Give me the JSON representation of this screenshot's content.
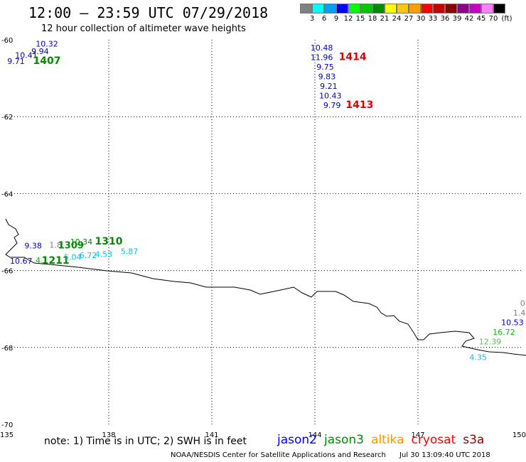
{
  "header": {
    "title": "12:00 – 23:59 UTC 07/29/2018",
    "subtitle": "12 hour collection of altimeter wave heights"
  },
  "legend": {
    "colors": [
      "#808080",
      "#00ffff",
      "#00a0ff",
      "#0000ff",
      "#00ff00",
      "#00c800",
      "#008c00",
      "#ffff00",
      "#ffc800",
      "#ffa000",
      "#ff0000",
      "#c80000",
      "#8c0000",
      "#8c008c",
      "#c800c8",
      "#ff80ff",
      "#000000"
    ],
    "labels": [
      "3",
      "6",
      "9",
      "12",
      "15",
      "18",
      "21",
      "24",
      "27",
      "30",
      "33",
      "36",
      "39",
      "42",
      "45",
      "70",
      "(ft)"
    ]
  },
  "map": {
    "y_axis": [
      "-60",
      "-62",
      "-64",
      "-66",
      "-68",
      "-70"
    ],
    "x_axis": [
      "135",
      "138",
      "141",
      "144",
      "147",
      "150"
    ],
    "lon_range": [
      135,
      150
    ],
    "lat_range": [
      -70,
      -60
    ]
  },
  "observations": [
    {
      "text": "10.32",
      "lon": 136.2,
      "lat": -60.1,
      "color": "#0000cc"
    },
    {
      "text": "9.94",
      "lon": 136.0,
      "lat": -60.3,
      "color": "#0000cc"
    },
    {
      "text": "10.41",
      "lon": 135.6,
      "lat": -60.4,
      "color": "#0000cc"
    },
    {
      "text": "9.71",
      "lon": 135.3,
      "lat": -60.55,
      "color": "#0000cc"
    },
    {
      "text": "1407",
      "lon": 136.2,
      "lat": -60.55,
      "color": "#008c00",
      "bold": true,
      "size": 14
    },
    {
      "text": "10.48",
      "lon": 144.2,
      "lat": -60.2,
      "color": "#0000cc"
    },
    {
      "text": "11.96",
      "lon": 144.2,
      "lat": -60.45,
      "color": "#0000cc"
    },
    {
      "text": "1414",
      "lon": 145.1,
      "lat": -60.45,
      "color": "#e00000",
      "bold": true,
      "size": 14
    },
    {
      "text": "9.75",
      "lon": 144.3,
      "lat": -60.7,
      "color": "#0000cc"
    },
    {
      "text": "9.83",
      "lon": 144.35,
      "lat": -60.95,
      "color": "#0000cc"
    },
    {
      "text": "9.21",
      "lon": 144.4,
      "lat": -61.2,
      "color": "#0000cc"
    },
    {
      "text": "10.43",
      "lon": 144.45,
      "lat": -61.45,
      "color": "#0000cc"
    },
    {
      "text": "9.79",
      "lon": 144.5,
      "lat": -61.7,
      "color": "#0000cc"
    },
    {
      "text": "1413",
      "lon": 145.3,
      "lat": -61.7,
      "color": "#e00000",
      "bold": true,
      "size": 14
    },
    {
      "text": "9.38",
      "lon": 135.8,
      "lat": -65.35,
      "color": "#0000cc"
    },
    {
      "text": "1.8",
      "lon": 136.45,
      "lat": -65.33,
      "color": "#808080"
    },
    {
      "text": "10.34",
      "lon": 137.2,
      "lat": -65.25,
      "color": "#008c00"
    },
    {
      "text": "1310",
      "lon": 138.0,
      "lat": -65.25,
      "color": "#008c00",
      "bold": true,
      "size": 14
    },
    {
      "text": "1309",
      "lon": 136.9,
      "lat": -65.35,
      "color": "#008c00",
      "bold": true,
      "size": 13
    },
    {
      "text": "5.87",
      "lon": 138.6,
      "lat": -65.5,
      "color": "#00c8e0"
    },
    {
      "text": "10.67",
      "lon": 135.45,
      "lat": -65.75,
      "color": "#0000cc"
    },
    {
      "text": "4.1",
      "lon": 136.05,
      "lat": -65.73,
      "color": "#00c800"
    },
    {
      "text": "1211",
      "lon": 136.45,
      "lat": -65.75,
      "color": "#008c00",
      "bold": true,
      "size": 14
    },
    {
      "text": "5.04",
      "lon": 136.95,
      "lat": -65.65,
      "color": "#00c8e0"
    },
    {
      "text": "6.72",
      "lon": 137.4,
      "lat": -65.6,
      "color": "#00c8e0"
    },
    {
      "text": "4.53",
      "lon": 137.85,
      "lat": -65.57,
      "color": "#00c8e0"
    },
    {
      "text": "0",
      "lon": 150.05,
      "lat": -66.85,
      "color": "#808080"
    },
    {
      "text": "1.4",
      "lon": 149.95,
      "lat": -67.1,
      "color": "#808080"
    },
    {
      "text": "10.53",
      "lon": 149.75,
      "lat": -67.35,
      "color": "#0000cc"
    },
    {
      "text": "16.72",
      "lon": 149.5,
      "lat": -67.6,
      "color": "#00c800"
    },
    {
      "text": "12.39",
      "lon": 149.1,
      "lat": -67.85,
      "color": "#40d040"
    },
    {
      "text": "4.35",
      "lon": 148.75,
      "lat": -68.25,
      "color": "#00c8e0"
    }
  ],
  "footer": {
    "note": "note: 1) Time is in UTC; 2) SWH is in feet",
    "satellites": [
      {
        "name": "jason2",
        "color": "#0000ff"
      },
      {
        "name": "jason3",
        "color": "#008c00"
      },
      {
        "name": "altika",
        "color": "#ff9600"
      },
      {
        "name": "cryosat",
        "color": "#ff0000"
      },
      {
        "name": "s3a",
        "color": "#8c0000"
      }
    ],
    "credit_org": "NOAA/NESDIS Center for Satellite Applications and Research",
    "credit_time": "Jul 30 13:09:40 UTC 2018"
  }
}
